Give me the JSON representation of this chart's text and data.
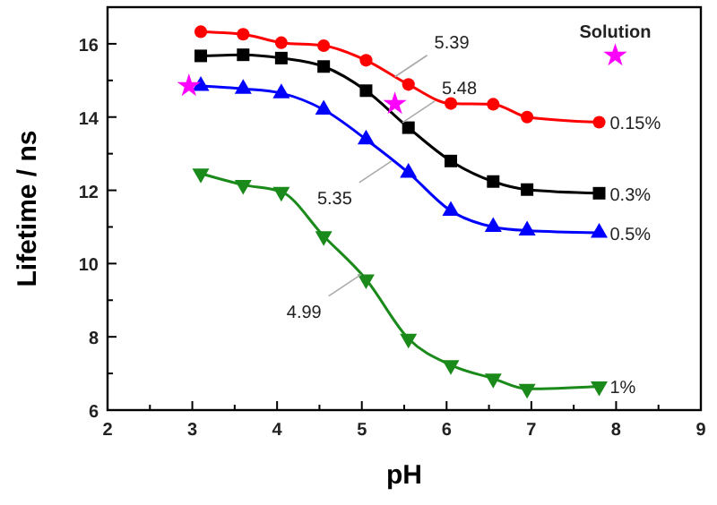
{
  "chart_data": {
    "type": "line",
    "xlabel": "pH",
    "ylabel": "Lifetime / ns",
    "xlim": [
      2,
      9
    ],
    "xticks": [
      2,
      {
        "value": 2.5,
        "label": null
      },
      3,
      {
        "value": 3.5,
        "label": null
      },
      4,
      {
        "value": 4.5,
        "label": null
      },
      5,
      {
        "value": 5.5,
        "label": null
      },
      6,
      {
        "value": 6.5,
        "label": null
      },
      7,
      {
        "value": 7.5,
        "label": null
      },
      8,
      {
        "value": 8.5,
        "label": null
      },
      9
    ],
    "ylim": [
      6,
      17
    ],
    "yticks": [
      6,
      {
        "value": 7,
        "label": null
      },
      8,
      {
        "value": 9,
        "label": null
      },
      10,
      {
        "value": 11,
        "label": null
      },
      12,
      {
        "value": 13,
        "label": null
      },
      14,
      {
        "value": 15,
        "label": null
      },
      16
    ],
    "grid": false,
    "line_style": "solid",
    "x": [
      3.1,
      3.6,
      4.05,
      4.55,
      5.05,
      5.55,
      6.05,
      6.55,
      6.95,
      7.8
    ],
    "series": [
      {
        "name": "0.15%",
        "color": "#ff0000",
        "marker": "circle",
        "values": [
          16.33,
          16.26,
          16.03,
          15.95,
          15.55,
          14.89,
          14.37,
          14.35,
          14.0,
          13.86
        ]
      },
      {
        "name": "0.3%",
        "color": "#000000",
        "marker": "square",
        "values": [
          15.67,
          15.7,
          15.61,
          15.38,
          14.72,
          13.71,
          12.8,
          12.24,
          12.02,
          11.92
        ]
      },
      {
        "name": "0.5%",
        "color": "#0000ff",
        "marker": "triangle",
        "values": [
          14.85,
          14.77,
          14.65,
          14.2,
          13.39,
          12.48,
          11.44,
          11.0,
          10.9,
          10.84
        ]
      },
      {
        "name": "1%",
        "color": "#1a8a1a",
        "marker": "triangle-down",
        "values": [
          12.46,
          12.15,
          11.96,
          10.75,
          9.57,
          7.95,
          7.23,
          6.86,
          6.58,
          6.65
        ]
      },
      {
        "name": "Solution",
        "type": "scatter",
        "color": "#ff00ff",
        "marker": "star",
        "x": [
          2.96,
          5.39,
          7.99
        ],
        "values": [
          14.85,
          14.36,
          15.68
        ]
      }
    ],
    "annotations": [
      {
        "text": "5.39",
        "x": 5.39,
        "y": 15.1
      },
      {
        "text": "5.48",
        "x": 5.48,
        "y": 13.85
      },
      {
        "text": "5.35",
        "x": 5.35,
        "y": 12.8
      },
      {
        "text": "4.99",
        "x": 4.99,
        "y": 9.7
      }
    ]
  }
}
